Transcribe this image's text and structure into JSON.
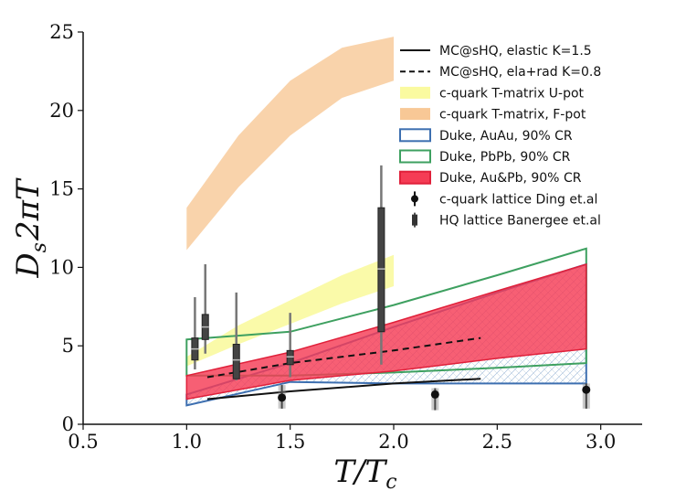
{
  "chart_data": {
    "type": "line",
    "xlabel": "T/T_c",
    "ylabel": "D_s 2πT",
    "xlim": [
      0.5,
      3.2
    ],
    "ylim": [
      0,
      25
    ],
    "x_ticks": [
      "0.5",
      "1.0",
      "1.5",
      "2.0",
      "2.5",
      "3.0"
    ],
    "y_ticks": [
      "0",
      "5",
      "10",
      "15",
      "20",
      "25"
    ],
    "legend_position": "top-right",
    "colors": {
      "fpot": "#f8c896",
      "upot": "#fafaa0",
      "duke_auau": "#3d6fb0",
      "duke_pbpb": "#3ea060",
      "duke_aupb": "#f53c55",
      "mc": "#111111",
      "lattice_ding": "#111111",
      "lattice_banerjee": "#444444"
    },
    "series": [
      {
        "name": "MC@sHQ, elastic K=1.5",
        "style": "solid",
        "x": [
          1.1,
          1.5,
          2.0,
          2.42
        ],
        "y": [
          1.6,
          2.1,
          2.6,
          2.9
        ]
      },
      {
        "name": "MC@sHQ, ela+rad K=0.8",
        "style": "dashed",
        "x": [
          1.1,
          1.5,
          2.0,
          2.42
        ],
        "y": [
          3.0,
          3.9,
          4.7,
          5.5
        ]
      },
      {
        "name": "c-quark T-matrix U-pot",
        "style": "band",
        "x": [
          1.0,
          1.25,
          1.5,
          1.75,
          2.0
        ],
        "upper": [
          4.3,
          6.3,
          7.9,
          9.5,
          10.8
        ],
        "lower": [
          3.7,
          5.1,
          6.4,
          7.7,
          8.8
        ]
      },
      {
        "name": "c-quark T-matrix, F-pot",
        "style": "band",
        "x": [
          1.0,
          1.25,
          1.5,
          1.75,
          2.0
        ],
        "upper": [
          13.8,
          18.4,
          21.9,
          24.0,
          24.7
        ],
        "lower": [
          11.1,
          15.1,
          18.4,
          20.8,
          21.9
        ]
      },
      {
        "name": "Duke, AuAu, 90% CR",
        "style": "band",
        "x": [
          1.0,
          1.5,
          2.0,
          2.5,
          2.93
        ],
        "upper": [
          1.9,
          3.9,
          6.2,
          8.4,
          10.2
        ],
        "lower": [
          1.2,
          2.7,
          2.6,
          2.6,
          2.6
        ]
      },
      {
        "name": "Duke, PbPb, 90% CR",
        "style": "band",
        "x": [
          1.0,
          1.5,
          2.0,
          2.5,
          2.93
        ],
        "upper": [
          5.4,
          5.9,
          7.6,
          9.5,
          11.2
        ],
        "lower": [
          3.1,
          3.1,
          3.3,
          3.6,
          3.9
        ]
      },
      {
        "name": "Duke, Au&Pb, 90% CR",
        "style": "band",
        "x": [
          1.0,
          1.5,
          2.0,
          2.5,
          2.93
        ],
        "upper": [
          3.1,
          4.6,
          6.5,
          8.5,
          10.2
        ],
        "lower": [
          1.6,
          2.8,
          3.4,
          4.2,
          4.8
        ]
      },
      {
        "name": "c-quark lattice Ding et.al",
        "style": "points",
        "points": [
          {
            "x": 1.46,
            "y": 1.7,
            "lo": 1.0,
            "hi": 2.5
          },
          {
            "x": 2.2,
            "y": 1.9,
            "lo": 0.9,
            "hi": 2.3
          },
          {
            "x": 2.93,
            "y": 2.2,
            "lo": 1.0,
            "hi": 2.6
          }
        ]
      },
      {
        "name": "HQ lattice Banergee et.al",
        "style": "points",
        "points": [
          {
            "x": 1.04,
            "y": 4.8,
            "lo": 3.5,
            "hi": 8.1,
            "blo": 4.1,
            "bhi": 5.5
          },
          {
            "x": 1.09,
            "y": 6.2,
            "lo": 4.5,
            "hi": 10.2,
            "blo": 5.4,
            "bhi": 7.0
          },
          {
            "x": 1.24,
            "y": 4.1,
            "lo": 2.8,
            "hi": 8.4,
            "blo": 2.9,
            "bhi": 5.1
          },
          {
            "x": 1.5,
            "y": 4.3,
            "lo": 3.0,
            "hi": 7.1,
            "blo": 3.8,
            "bhi": 4.7
          },
          {
            "x": 1.94,
            "y": 9.9,
            "lo": 3.8,
            "hi": 16.5,
            "blo": 5.9,
            "bhi": 13.8
          }
        ]
      }
    ]
  }
}
